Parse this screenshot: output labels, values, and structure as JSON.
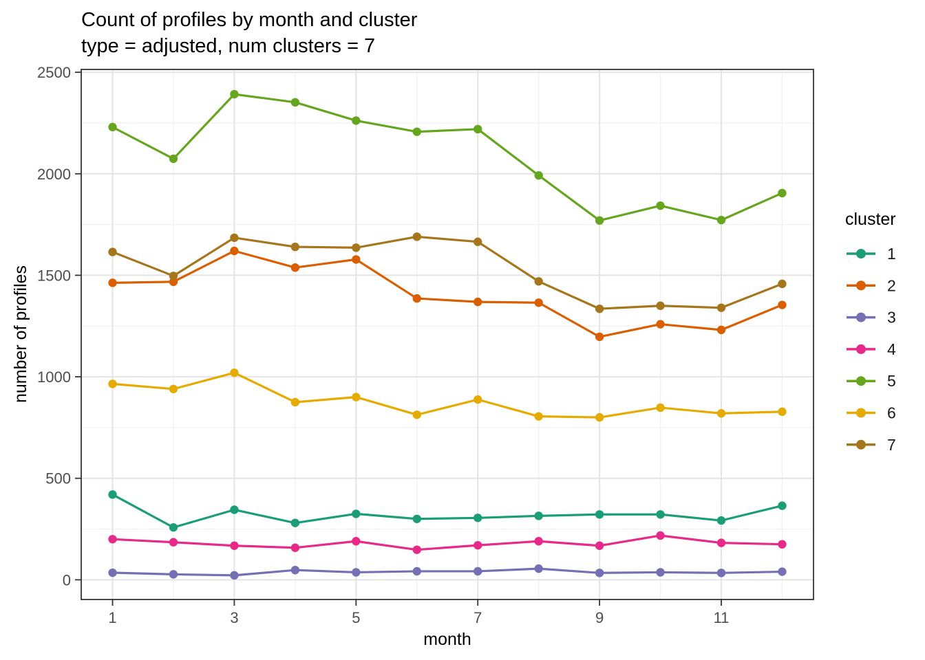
{
  "title": "Count of profiles by month and cluster",
  "subtitle": "type = adjusted, num clusters = 7",
  "chart_data": {
    "type": "line",
    "title": "Count of profiles by month and cluster",
    "subtitle": "type = adjusted, num clusters = 7",
    "xlabel": "month",
    "ylabel": "number of profiles",
    "legend_title": "cluster",
    "legend_position": "right",
    "grid": true,
    "x": [
      1,
      2,
      3,
      4,
      5,
      6,
      7,
      8,
      9,
      10,
      11,
      12
    ],
    "x_breaks": [
      1,
      3,
      5,
      7,
      9,
      11
    ],
    "x_break_labels": [
      "1",
      "3",
      "5",
      "7",
      "9",
      "11"
    ],
    "x_minor_breaks": [
      2,
      4,
      6,
      8,
      10,
      12
    ],
    "xlim": [
      0.485,
      12.515
    ],
    "y_breaks": [
      0,
      500,
      1000,
      1500,
      2000,
      2500
    ],
    "y_break_labels": [
      "0",
      "500",
      "1000",
      "1500",
      "2000",
      "2500"
    ],
    "y_minor_breaks": [
      250,
      750,
      1250,
      1750,
      2250
    ],
    "ylim": [
      -97,
      2514
    ],
    "series": [
      {
        "name": "1",
        "color": "#1B9E77",
        "values": [
          420,
          258,
          345,
          280,
          325,
          300,
          305,
          315,
          322,
          322,
          292,
          365
        ]
      },
      {
        "name": "2",
        "color": "#D95F02",
        "values": [
          1463,
          1468,
          1620,
          1538,
          1578,
          1386,
          1369,
          1365,
          1197,
          1259,
          1231,
          1354
        ]
      },
      {
        "name": "3",
        "color": "#7570B3",
        "values": [
          35,
          27,
          22,
          48,
          37,
          42,
          42,
          55,
          34,
          37,
          34,
          40
        ]
      },
      {
        "name": "4",
        "color": "#E7298A",
        "values": [
          200,
          185,
          168,
          158,
          190,
          148,
          170,
          190,
          168,
          218,
          182,
          175
        ]
      },
      {
        "name": "5",
        "color": "#66A61E",
        "values": [
          2230,
          2074,
          2392,
          2352,
          2262,
          2207,
          2220,
          1992,
          1770,
          1843,
          1772,
          1905
        ]
      },
      {
        "name": "6",
        "color": "#E6AB02",
        "values": [
          965,
          940,
          1020,
          875,
          900,
          813,
          888,
          805,
          800,
          848,
          820,
          828
        ]
      },
      {
        "name": "7",
        "color": "#A6761D",
        "values": [
          1615,
          1497,
          1685,
          1640,
          1636,
          1690,
          1665,
          1470,
          1335,
          1350,
          1340,
          1458
        ]
      }
    ]
  },
  "theme": {
    "background": "#ffffff",
    "panel_border": "#333333",
    "grid_major": "#e4e4e4",
    "grid_minor": "#f1f1f1",
    "tick_color": "#333333",
    "tick_label_color": "#4d4d4d",
    "text_color": "#000000"
  }
}
